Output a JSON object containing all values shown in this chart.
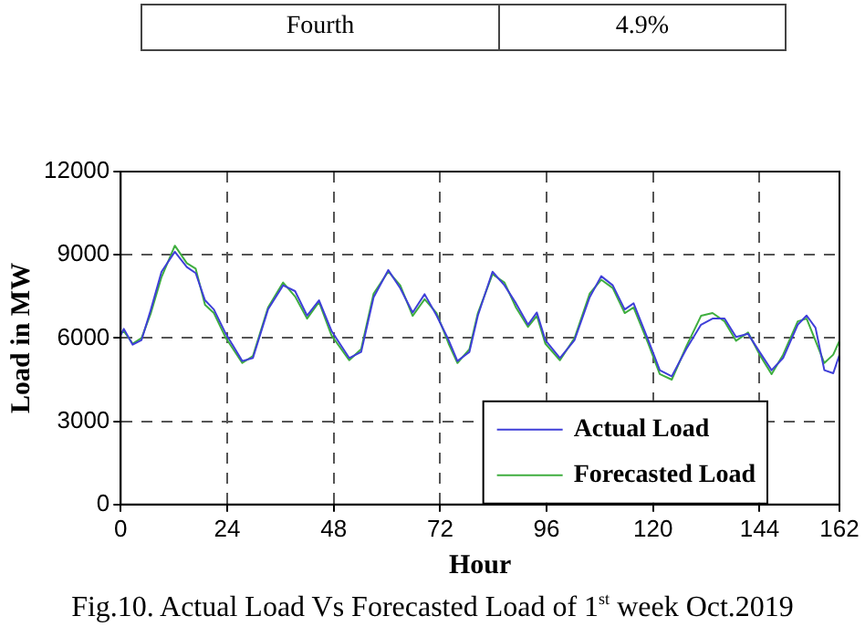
{
  "chart_data": {
    "type": "line",
    "title": "Fig.10. Actual Load Vs Forecasted Load of 1$^{st}$ week Oct.2019",
    "xlabel": "Hour",
    "ylabel": "Load in MW",
    "annotations": [
      "Fourth",
      "4.9%"
    ],
    "xlim": [
      0,
      162
    ],
    "xticks": [
      0,
      24,
      48,
      72,
      96,
      120,
      144,
      162
    ],
    "ylim": [
      0,
      12000
    ],
    "yticks": [
      0,
      3000,
      6000,
      9000,
      12000
    ],
    "grid": true,
    "legend": "bottom right",
    "marker": "none",
    "line_style": "solid",
    "series": [
      {
        "name": "Actual Load",
        "color": "#3f3fd8",
        "x": [
          0,
          0.7,
          2.7,
          4.7,
          6.8,
          9.2,
          12.2,
          14.9,
          16.9,
          19,
          21,
          23.7,
          27.4,
          29.8,
          33.2,
          36.6,
          39.3,
          42,
          44.7,
          47.5,
          51.5,
          54.2,
          57,
          60.3,
          63,
          65.8,
          68.5,
          71.2,
          73.9,
          75.9,
          78.6,
          80.5,
          83.8,
          86.5,
          89.1,
          91.8,
          93.8,
          95.7,
          99,
          102.3,
          105.7,
          108.3,
          110.9,
          113.6,
          115.6,
          118.9,
          121.5,
          124.2,
          127.5,
          130.8,
          133.4,
          136.1,
          138.7,
          141.4,
          144,
          146.7,
          149.3,
          152.6,
          154.6,
          156.6,
          158.6,
          160.6,
          162
        ],
        "values": [
          6100,
          6330,
          5760,
          5930,
          7030,
          8390,
          9110,
          8560,
          8340,
          7360,
          7030,
          6150,
          5170,
          5280,
          7030,
          7900,
          7690,
          6810,
          7360,
          6260,
          5280,
          5500,
          7470,
          8450,
          7800,
          6920,
          7580,
          6810,
          5930,
          5170,
          5500,
          6810,
          8390,
          7900,
          7250,
          6480,
          6920,
          5930,
          5280,
          5930,
          7470,
          8230,
          7900,
          7030,
          7250,
          5930,
          4840,
          4620,
          5610,
          6480,
          6700,
          6700,
          6040,
          6150,
          5500,
          4840,
          5280,
          6480,
          6810,
          6370,
          4840,
          4730,
          5390
        ]
      },
      {
        "name": "Forecasted Load",
        "color": "#3fae3f",
        "x": [
          0,
          0.7,
          2.7,
          4.7,
          6.8,
          9.2,
          12.2,
          14.9,
          16.9,
          19,
          21,
          23.7,
          27.4,
          29.8,
          33.2,
          36.6,
          39.3,
          42,
          44.7,
          47.5,
          51.5,
          54.2,
          57,
          60.3,
          63,
          65.8,
          68.5,
          71.2,
          73.9,
          75.9,
          78.6,
          80.5,
          83.8,
          86.5,
          89.1,
          91.8,
          93.8,
          95.7,
          99,
          102.3,
          105.7,
          108.3,
          110.9,
          113.6,
          115.6,
          118.9,
          121.5,
          124.2,
          127.5,
          130.8,
          133.4,
          136.1,
          138.7,
          141.4,
          144,
          146.7,
          149.3,
          152.6,
          154.6,
          156.6,
          158.6,
          160.6,
          162
        ],
        "values": [
          6200,
          6250,
          5800,
          6000,
          6900,
          8200,
          9330,
          8700,
          8500,
          7200,
          6900,
          6000,
          5100,
          5350,
          7100,
          8000,
          7500,
          6700,
          7300,
          6100,
          5200,
          5600,
          7600,
          8400,
          7900,
          6800,
          7400,
          6900,
          5800,
          5100,
          5600,
          6900,
          8300,
          8000,
          7100,
          6400,
          6800,
          5800,
          5200,
          6000,
          7600,
          8100,
          7800,
          6900,
          7100,
          5800,
          4700,
          4500,
          5700,
          6800,
          6900,
          6600,
          5900,
          6200,
          5400,
          4700,
          5400,
          6600,
          6700,
          5900,
          5100,
          5400,
          5900
        ]
      }
    ]
  }
}
